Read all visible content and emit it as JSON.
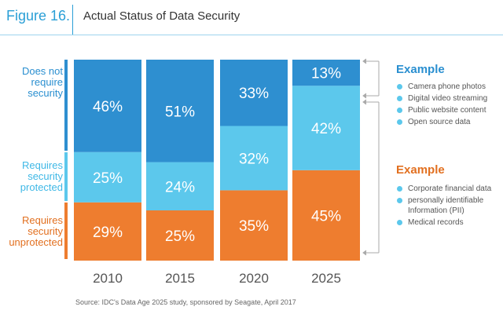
{
  "header": {
    "figure_label": "Figure 16.",
    "title": "Actual Status of Data Security"
  },
  "colors": {
    "dark_blue": "#2e8fd0",
    "light_blue": "#5cc8ec",
    "orange": "#ee7d2f",
    "text_blue": "#2a8fd0",
    "text_light_blue": "#3fb8e6",
    "text_orange": "#e27020",
    "bracket": "#aaaaaa"
  },
  "category_labels": {
    "not_require": "Does not\nrequire\nsecurity",
    "protected": "Requires\nsecurity\nprotected",
    "unprotected": "Requires\nsecurity\nunprotected"
  },
  "chart_data": {
    "type": "bar",
    "stacked": true,
    "categories": [
      "2010",
      "2015",
      "2020",
      "2025"
    ],
    "series": [
      {
        "name": "Requires security unprotected",
        "values": [
          29,
          25,
          35,
          45
        ]
      },
      {
        "name": "Requires security protected",
        "values": [
          25,
          24,
          32,
          42
        ]
      },
      {
        "name": "Does not require security",
        "values": [
          46,
          51,
          33,
          13
        ]
      }
    ],
    "unit": "%",
    "ylim": [
      0,
      100
    ]
  },
  "examples": {
    "top": {
      "title": "Example",
      "items": [
        "Camera phone photos",
        "Digital video streaming",
        "Public website content",
        "Open source data"
      ]
    },
    "bottom": {
      "title": "Example",
      "items": [
        "Corporate financial data",
        "personally identifiable Information (PII)",
        "Medical records"
      ]
    }
  },
  "source": "Source: IDC's Data Age 2025 study, sponsored by Seagate, April 2017"
}
